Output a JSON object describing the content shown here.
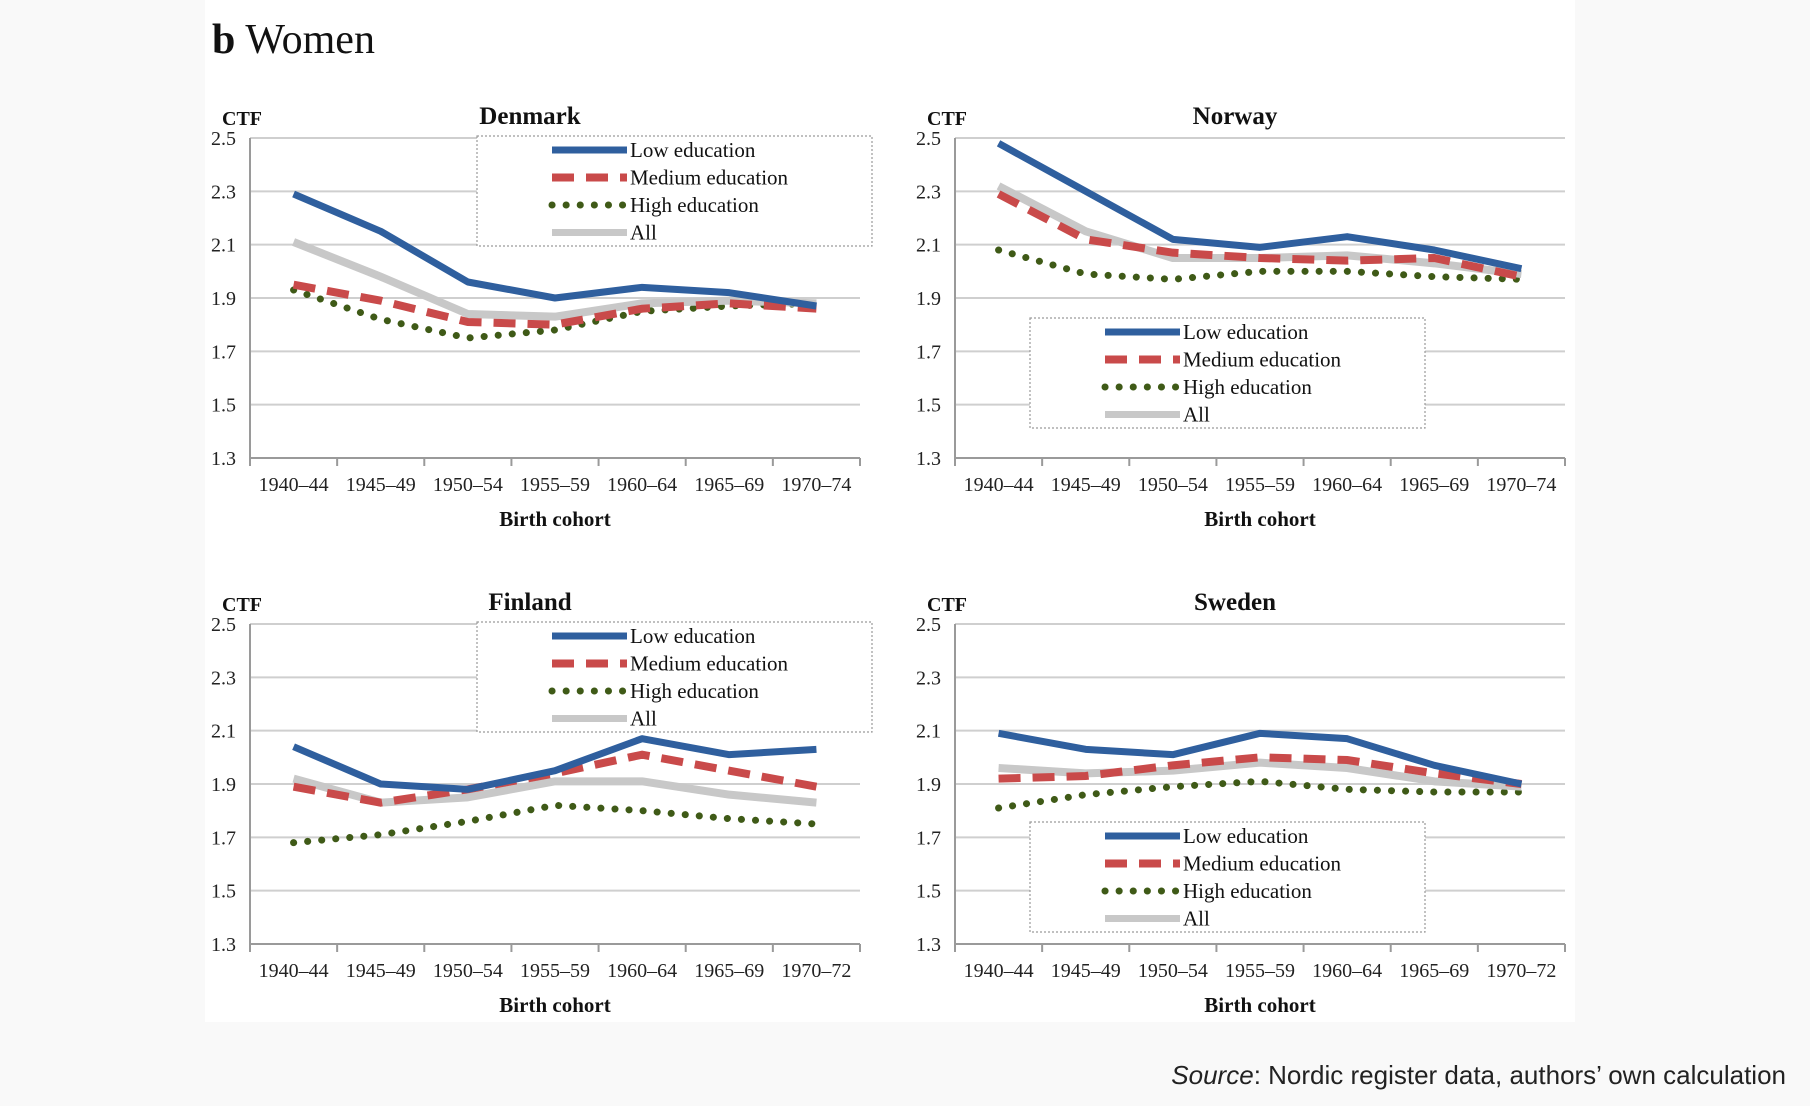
{
  "figure": {
    "panel_letter": "b",
    "panel_title": "Women",
    "source_label": "Source",
    "source_text": ": Nordic register data, authors’ own calculation"
  },
  "legend_labels": [
    "Low education",
    "Medium education",
    "High education",
    "All"
  ],
  "series_styles": [
    {
      "color": "#2f5f9e",
      "style": "solid"
    },
    {
      "color": "#c94a4a",
      "style": "dashed"
    },
    {
      "color": "#3f5a17",
      "style": "dotted"
    },
    {
      "color": "#c8c8c8",
      "style": "solid"
    }
  ],
  "chart_data": [
    {
      "type": "line",
      "title": "Denmark",
      "ylabel": "CTF",
      "xlabel": "Birth cohort",
      "categories": [
        "1940–44",
        "1945–49",
        "1950–54",
        "1955–59",
        "1960–64",
        "1965–69",
        "1970–74"
      ],
      "ylim": [
        1.3,
        2.5
      ],
      "yticks": [
        "1.3",
        "1.5",
        "1.7",
        "1.9",
        "2.1",
        "2.3",
        "2.5"
      ],
      "grid": true,
      "legend_position": "top-right",
      "series": [
        {
          "name": "Low education",
          "values": [
            2.29,
            2.15,
            1.96,
            1.9,
            1.94,
            1.92,
            1.87
          ]
        },
        {
          "name": "Medium education",
          "values": [
            1.95,
            1.89,
            1.81,
            1.8,
            1.86,
            1.88,
            1.86
          ]
        },
        {
          "name": "High education",
          "values": [
            1.93,
            1.82,
            1.75,
            1.78,
            1.85,
            1.87,
            1.88
          ]
        },
        {
          "name": "All",
          "values": [
            2.11,
            1.98,
            1.84,
            1.83,
            1.88,
            1.89,
            1.88
          ]
        }
      ]
    },
    {
      "type": "line",
      "title": "Norway",
      "ylabel": "CTF",
      "xlabel": "Birth cohort",
      "categories": [
        "1940–44",
        "1945–49",
        "1950–54",
        "1955–59",
        "1960–64",
        "1965–69",
        "1970–74"
      ],
      "ylim": [
        1.3,
        2.5
      ],
      "yticks": [
        "1.3",
        "1.5",
        "1.7",
        "1.9",
        "2.1",
        "2.3",
        "2.5"
      ],
      "grid": true,
      "legend_position": "center",
      "series": [
        {
          "name": "Low education",
          "values": [
            2.48,
            2.3,
            2.12,
            2.09,
            2.13,
            2.08,
            2.01
          ]
        },
        {
          "name": "Medium education",
          "values": [
            2.29,
            2.12,
            2.07,
            2.05,
            2.04,
            2.05,
            1.98
          ]
        },
        {
          "name": "High education",
          "values": [
            2.08,
            1.99,
            1.97,
            2.0,
            2.0,
            1.98,
            1.97
          ]
        },
        {
          "name": "All",
          "values": [
            2.32,
            2.15,
            2.05,
            2.05,
            2.06,
            2.03,
            1.99
          ]
        }
      ]
    },
    {
      "type": "line",
      "title": "Finland",
      "ylabel": "CTF",
      "xlabel": "Birth cohort",
      "categories": [
        "1940–44",
        "1945–49",
        "1950–54",
        "1955–59",
        "1960–64",
        "1965–69",
        "1970–72"
      ],
      "ylim": [
        1.3,
        2.5
      ],
      "yticks": [
        "1.3",
        "1.5",
        "1.7",
        "1.9",
        "2.1",
        "2.3",
        "2.5"
      ],
      "grid": true,
      "legend_position": "top-right",
      "series": [
        {
          "name": "Low education",
          "values": [
            2.04,
            1.9,
            1.88,
            1.95,
            2.07,
            2.01,
            2.03
          ]
        },
        {
          "name": "Medium education",
          "values": [
            1.89,
            1.83,
            1.88,
            1.94,
            2.01,
            1.95,
            1.89
          ]
        },
        {
          "name": "High education",
          "values": [
            1.68,
            1.71,
            1.76,
            1.82,
            1.8,
            1.77,
            1.75
          ]
        },
        {
          "name": "All",
          "values": [
            1.92,
            1.83,
            1.85,
            1.91,
            1.91,
            1.86,
            1.83
          ]
        }
      ]
    },
    {
      "type": "line",
      "title": "Sweden",
      "ylabel": "CTF",
      "xlabel": "Birth cohort",
      "categories": [
        "1940–44",
        "1945–49",
        "1950–54",
        "1955–59",
        "1960–64",
        "1965–69",
        "1970–72"
      ],
      "ylim": [
        1.3,
        2.5
      ],
      "yticks": [
        "1.3",
        "1.5",
        "1.7",
        "1.9",
        "2.1",
        "2.3",
        "2.5"
      ],
      "grid": true,
      "legend_position": "bottom-center",
      "series": [
        {
          "name": "Low education",
          "values": [
            2.09,
            2.03,
            2.01,
            2.09,
            2.07,
            1.97,
            1.9
          ]
        },
        {
          "name": "Medium education",
          "values": [
            1.92,
            1.93,
            1.97,
            2.0,
            1.99,
            1.94,
            1.9
          ]
        },
        {
          "name": "High education",
          "values": [
            1.81,
            1.86,
            1.89,
            1.91,
            1.88,
            1.87,
            1.87
          ]
        },
        {
          "name": "All",
          "values": [
            1.96,
            1.94,
            1.95,
            1.98,
            1.96,
            1.91,
            1.89
          ]
        }
      ]
    }
  ]
}
